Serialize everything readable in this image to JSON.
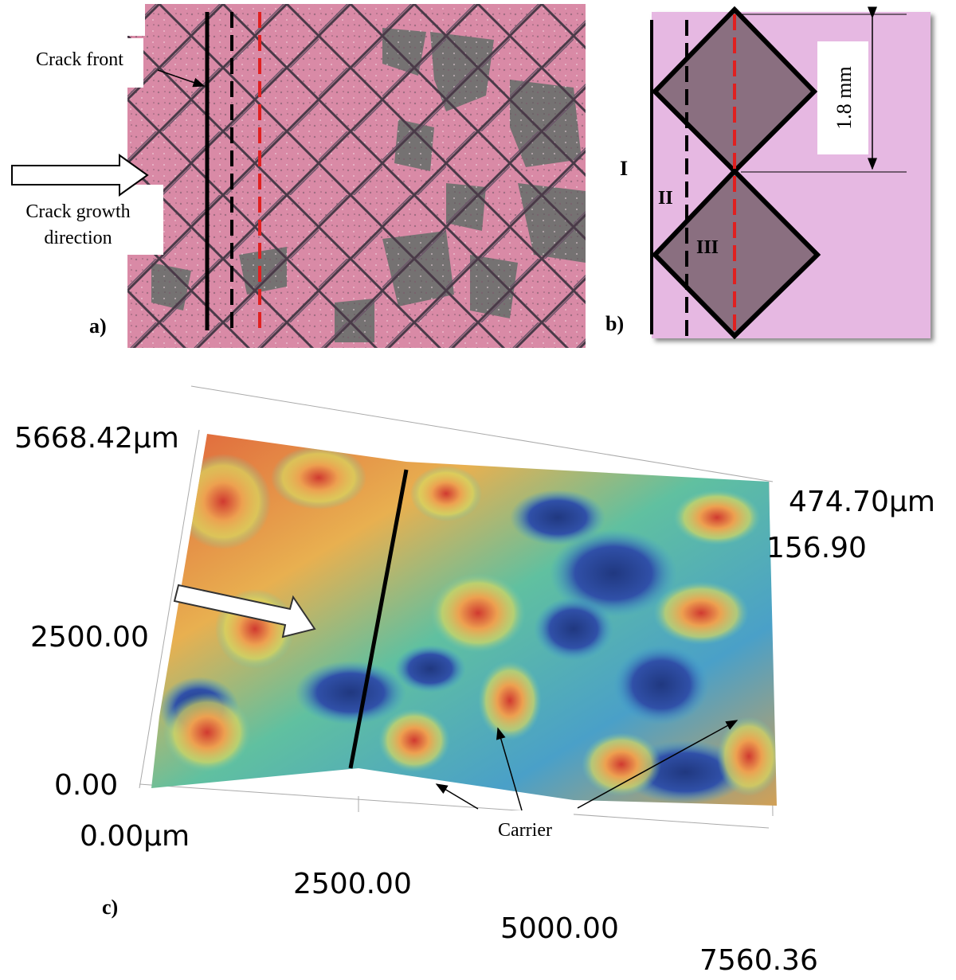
{
  "panel_a": {
    "label": "a)",
    "crack_front": "Crack front",
    "crack_growth_direction": [
      "Crack growth",
      "direction"
    ]
  },
  "panel_b": {
    "label": "b)",
    "zones": [
      "I",
      "II",
      "III"
    ],
    "dimension": "1.8 mm"
  },
  "panel_c": {
    "label": "c)",
    "y_axis_labels": [
      "5668.42µm",
      "2500.00",
      "0.00"
    ],
    "x_axis_labels": [
      "0.00µm",
      "2500.00",
      "5000.00",
      "7560.36"
    ],
    "z_axis_labels": [
      "474.70µm",
      "156.90"
    ],
    "callout": "Carrier"
  }
}
